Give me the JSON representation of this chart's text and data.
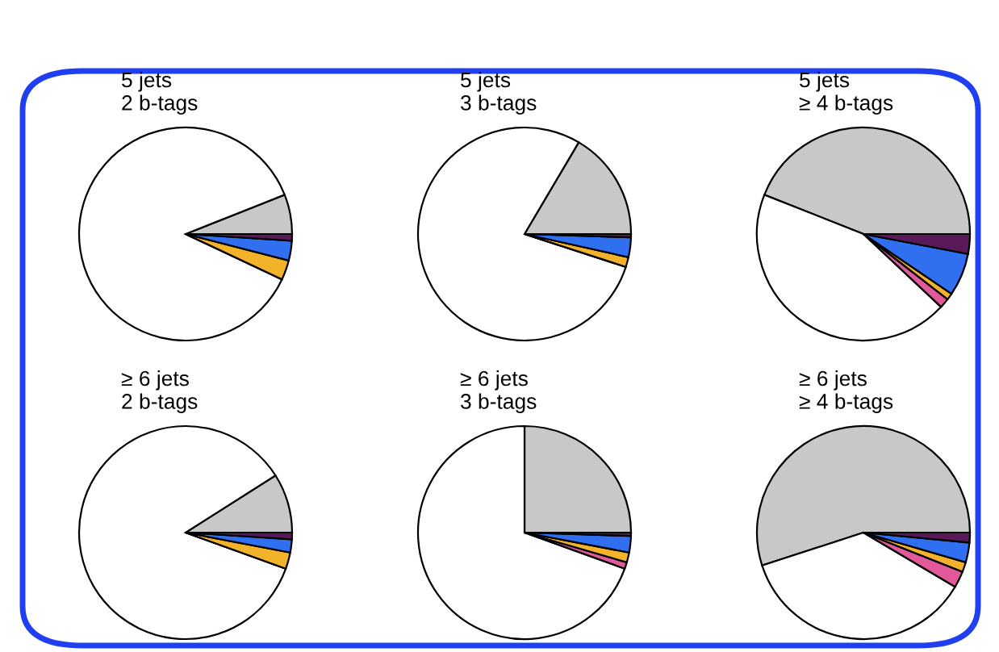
{
  "chart_data": [
    {
      "type": "pie",
      "title": "5 jets\n2 b-tags",
      "categories": [
        null,
        null,
        null,
        null,
        null,
        null
      ],
      "values": [
        6,
        87,
        0,
        3,
        3,
        1
      ],
      "colors": [
        "#c8c8c8",
        "#ffffff",
        "#e05a9a",
        "#f2b32a",
        "#2f6ff0",
        "#5a1a5a"
      ]
    },
    {
      "type": "pie",
      "title": "5 jets\n3 b-tags",
      "categories": [
        null,
        null,
        null,
        null,
        null,
        null
      ],
      "values": [
        16.5,
        78.5,
        0,
        1.5,
        3,
        0.5
      ],
      "colors": [
        "#c8c8c8",
        "#ffffff",
        "#e05a9a",
        "#f2b32a",
        "#2f6ff0",
        "#5a1a5a"
      ]
    },
    {
      "type": "pie",
      "title": "5 jets\n≥ 4 b-tags",
      "categories": [
        null,
        null,
        null,
        null,
        null,
        null
      ],
      "values": [
        44,
        44,
        1.5,
        1,
        6.5,
        3
      ],
      "colors": [
        "#c8c8c8",
        "#ffffff",
        "#e05a9a",
        "#f2b32a",
        "#2f6ff0",
        "#5a1a5a"
      ]
    },
    {
      "type": "pie",
      "title": "≥ 6 jets\n2 b-tags",
      "categories": [
        null,
        null,
        null,
        null,
        null,
        null
      ],
      "values": [
        9,
        85.5,
        0,
        2.5,
        2,
        1
      ],
      "colors": [
        "#c8c8c8",
        "#ffffff",
        "#e05a9a",
        "#f2b32a",
        "#2f6ff0",
        "#5a1a5a"
      ]
    },
    {
      "type": "pie",
      "title": "≥ 6 jets\n3 b-tags",
      "categories": [
        null,
        null,
        null,
        null,
        null,
        null
      ],
      "values": [
        25,
        69.5,
        1,
        1.5,
        2.5,
        0.5
      ],
      "colors": [
        "#c8c8c8",
        "#ffffff",
        "#e05a9a",
        "#f2b32a",
        "#2f6ff0",
        "#5a1a5a"
      ]
    },
    {
      "type": "pie",
      "title": "≥ 6 jets\n≥ 4 b-tags",
      "categories": [
        null,
        null,
        null,
        null,
        null,
        null
      ],
      "values": [
        55,
        36.5,
        2.5,
        1.5,
        3,
        1.5
      ],
      "colors": [
        "#c8c8c8",
        "#ffffff",
        "#e05a9a",
        "#f2b32a",
        "#2f6ff0",
        "#5a1a5a"
      ]
    }
  ]
}
